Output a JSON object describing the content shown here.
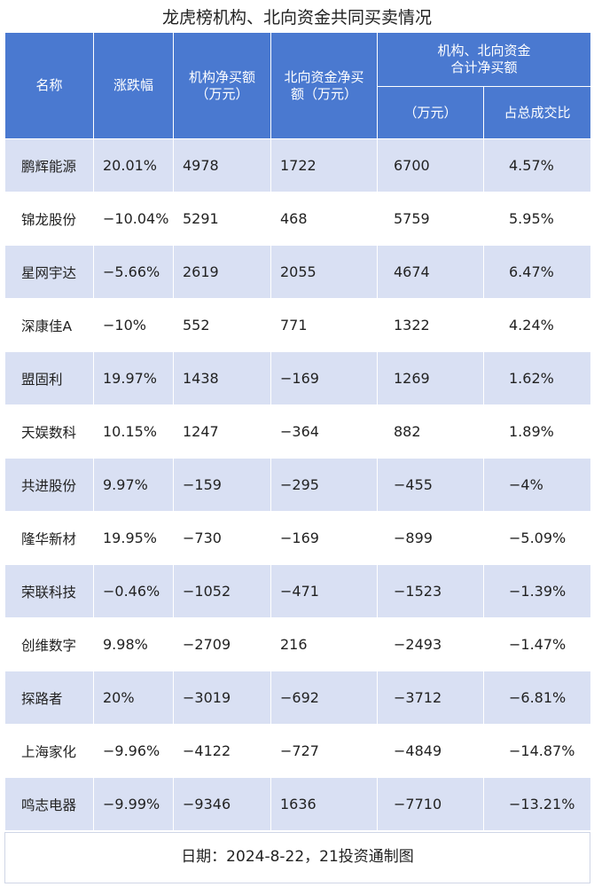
{
  "title": "龙虎榜机构、北向资金共同买卖情况",
  "headers": {
    "name": "名称",
    "change": "涨跌幅",
    "inst_net": "机构净买额\n（万元）",
    "north_net": "北向资金净买\n额（万元）",
    "combined": "机构、北向资金\n合计净买额",
    "combined_unit": "（万元）",
    "share": "占总成交比"
  },
  "rows": [
    {
      "name": "鹏辉能源",
      "change": "20.01%",
      "inst": "4978",
      "north": "1722",
      "total": "6700",
      "share": "4.57%"
    },
    {
      "name": "锦龙股份",
      "change": "−10.04%",
      "inst": "5291",
      "north": "468",
      "total": "5759",
      "share": "5.95%"
    },
    {
      "name": "星网宇达",
      "change": "−5.66%",
      "inst": "2619",
      "north": "2055",
      "total": "4674",
      "share": "6.47%"
    },
    {
      "name": "深康佳A",
      "change": "−10%",
      "inst": "552",
      "north": "771",
      "total": "1322",
      "share": "4.24%"
    },
    {
      "name": "盟固利",
      "change": "19.97%",
      "inst": "1438",
      "north": "−169",
      "total": "1269",
      "share": "1.62%"
    },
    {
      "name": "天娱数科",
      "change": "10.15%",
      "inst": "1247",
      "north": "−364",
      "total": "882",
      "share": "1.89%"
    },
    {
      "name": "共进股份",
      "change": "9.97%",
      "inst": "−159",
      "north": "−295",
      "total": "−455",
      "share": "−4%"
    },
    {
      "name": "隆华新材",
      "change": "19.95%",
      "inst": "−730",
      "north": "−169",
      "total": "−899",
      "share": "−5.09%"
    },
    {
      "name": "荣联科技",
      "change": "−0.46%",
      "inst": "−1052",
      "north": "−471",
      "total": "−1523",
      "share": "−1.39%"
    },
    {
      "name": "创维数字",
      "change": "9.98%",
      "inst": "−2709",
      "north": "216",
      "total": "−2493",
      "share": "−1.47%"
    },
    {
      "name": "探路者",
      "change": "20%",
      "inst": "−3019",
      "north": "−692",
      "total": "−3712",
      "share": "−6.81%"
    },
    {
      "name": "上海家化",
      "change": "−9.96%",
      "inst": "−4122",
      "north": "−727",
      "total": "−4849",
      "share": "−14.87%"
    },
    {
      "name": "鸣志电器",
      "change": "−9.99%",
      "inst": "−9346",
      "north": "1636",
      "total": "−7710",
      "share": "−13.21%"
    }
  ],
  "footer": "日期：2024-8-22，21投资通制图",
  "colors": {
    "header_bg": "#4a79d0",
    "stripe": "#d9e0f3"
  }
}
